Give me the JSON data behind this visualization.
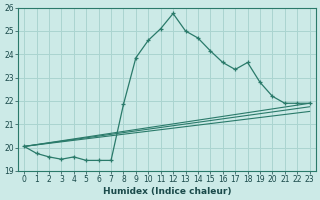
{
  "xlabel": "Humidex (Indice chaleur)",
  "ylabel": "",
  "bg_color": "#cceae7",
  "grid_color": "#aad4d0",
  "line_color": "#2a7a6a",
  "xlim": [
    -0.5,
    23.5
  ],
  "ylim": [
    19,
    26
  ],
  "xticks": [
    0,
    1,
    2,
    3,
    4,
    5,
    6,
    7,
    8,
    9,
    10,
    11,
    12,
    13,
    14,
    15,
    16,
    17,
    18,
    19,
    20,
    21,
    22,
    23
  ],
  "yticks": [
    19,
    20,
    21,
    22,
    23,
    24,
    25,
    26
  ],
  "series": [
    {
      "x": [
        0,
        1,
        2,
        3,
        4,
        5,
        6,
        7,
        8,
        9,
        10,
        11,
        12,
        13,
        14,
        15,
        16,
        17,
        18,
        19,
        20,
        21,
        22,
        23
      ],
      "y": [
        20.05,
        19.75,
        19.6,
        19.5,
        19.6,
        19.45,
        19.45,
        19.45,
        21.85,
        23.85,
        24.6,
        25.1,
        25.75,
        25.0,
        24.7,
        24.15,
        23.65,
        23.35,
        23.65,
        22.8,
        22.2,
        21.9,
        21.9,
        21.9
      ]
    },
    {
      "x": [
        0,
        23
      ],
      "y": [
        20.05,
        21.9
      ]
    },
    {
      "x": [
        0,
        23
      ],
      "y": [
        20.05,
        21.75
      ]
    },
    {
      "x": [
        0,
        23
      ],
      "y": [
        20.05,
        21.55
      ]
    }
  ]
}
